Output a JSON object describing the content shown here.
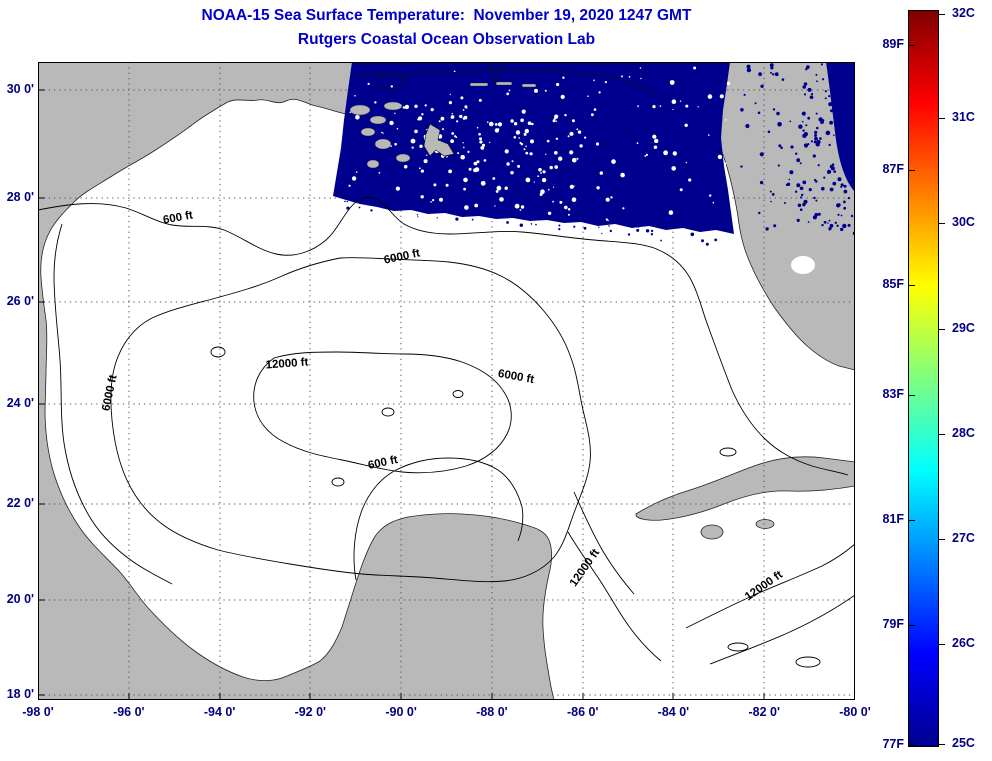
{
  "header": {
    "title": "NOAA-15 Sea Surface Temperature:  November 19, 2020 1247 GMT",
    "subtitle": "Rutgers Coastal Ocean Observation Lab"
  },
  "axes": {
    "x_ticks": [
      "-98 0'",
      "-96 0'",
      "-94 0'",
      "-92 0'",
      "-90 0'",
      "-88 0'",
      "-86 0'",
      "-84 0'",
      "-82 0'",
      "-80 0'"
    ],
    "y_ticks": [
      "18 0'",
      "20 0'",
      "22 0'",
      "24 0'",
      "26 0'",
      "28 0'",
      "30 0'"
    ],
    "x_range_lon": [
      -98,
      -80
    ],
    "y_range_lat": [
      18,
      30.6
    ]
  },
  "map": {
    "region": "Gulf of Mexico",
    "contour_labels": [
      "600 ft",
      "6000 ft",
      "12000 ft",
      "6000 ft",
      "6000 ft",
      "600 ft",
      "12000 ft",
      "12000 ft"
    ],
    "land_color": "#b9b9b9",
    "ocean_color": "#ffffff",
    "sst_swath_color": "#00008f",
    "sst_values": {
      "swath_approx_c": 25,
      "data_regions": [
        "northern Gulf of Mexico shelf",
        "Atlantic east of Florida"
      ]
    }
  },
  "colorbar": {
    "celsius_labels": [
      "25C",
      "26C",
      "27C",
      "28C",
      "29C",
      "30C",
      "31C",
      "32C"
    ],
    "fahrenheit_labels": [
      "77F",
      "79F",
      "81F",
      "83F",
      "85F",
      "87F",
      "89F"
    ],
    "min_c": 25,
    "max_c": 32,
    "colormap": "jet",
    "gradient_stops": [
      "#00008f",
      "#0000ff",
      "#00ffff",
      "#ffff00",
      "#ff0000",
      "#800000"
    ]
  },
  "colors": {
    "title": "#0000cc",
    "axis_labels": "#000080",
    "contour_lines": "#000000"
  }
}
